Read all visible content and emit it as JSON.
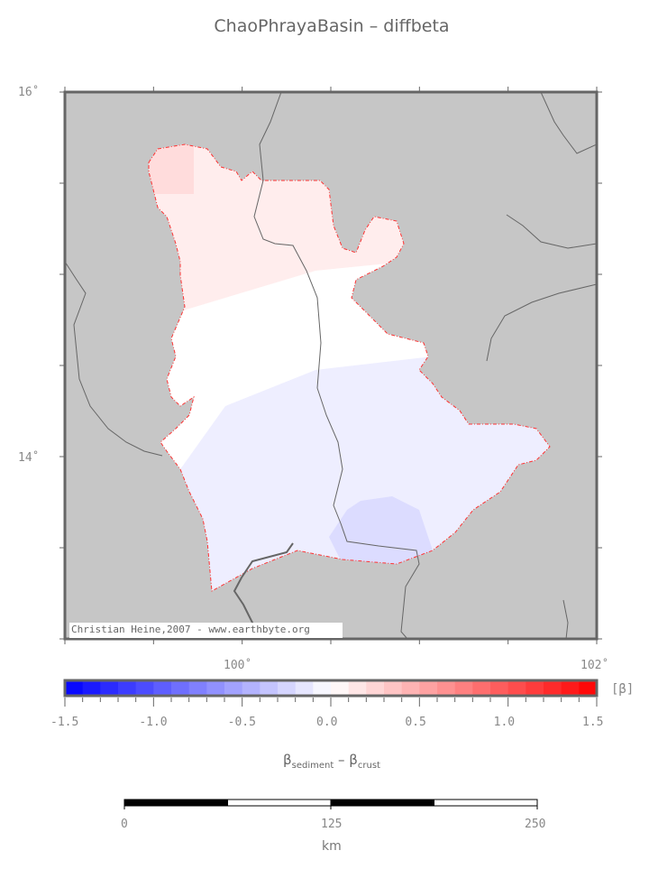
{
  "title": "ChaoPhrayaBasin – diffbeta",
  "map": {
    "lon_range": [
      99,
      102
    ],
    "lat_range": [
      13,
      16
    ],
    "lon_labels": [
      "100˚",
      "102˚"
    ],
    "lat_labels": [
      "16˚",
      "14˚"
    ],
    "credit": "Christian Heine,2007 - www.earthbyte.org",
    "background_color": "#c6c6c6",
    "outline_color": "#ff3333",
    "zones": [
      {
        "name": "northwest",
        "value": 0.2,
        "color": "#ffdcdc"
      },
      {
        "name": "north",
        "value": 0.1,
        "color": "#ffeded"
      },
      {
        "name": "central",
        "value": 0.0,
        "color": "#ffffff"
      },
      {
        "name": "south",
        "value": -0.1,
        "color": "#eeeeff"
      },
      {
        "name": "delta",
        "value": -0.2,
        "color": "#dcdcff"
      }
    ]
  },
  "colorbar": {
    "min": -1.5,
    "max": 1.5,
    "bins": 30,
    "low_color": "#0000ff",
    "mid_color": "#ffffff",
    "high_color": "#ff0000",
    "tick_labels": [
      "-1.5",
      "-1.0",
      "-0.5",
      "0.0",
      "0.5",
      "1.0",
      "1.5"
    ],
    "unit": "[β]",
    "label_main1": "β",
    "label_sub1": "sediment",
    "label_sep": " – ",
    "label_main2": "β",
    "label_sub2": "crust"
  },
  "scalebar": {
    "labels": [
      "0",
      "125",
      "250"
    ],
    "unit": "km"
  }
}
